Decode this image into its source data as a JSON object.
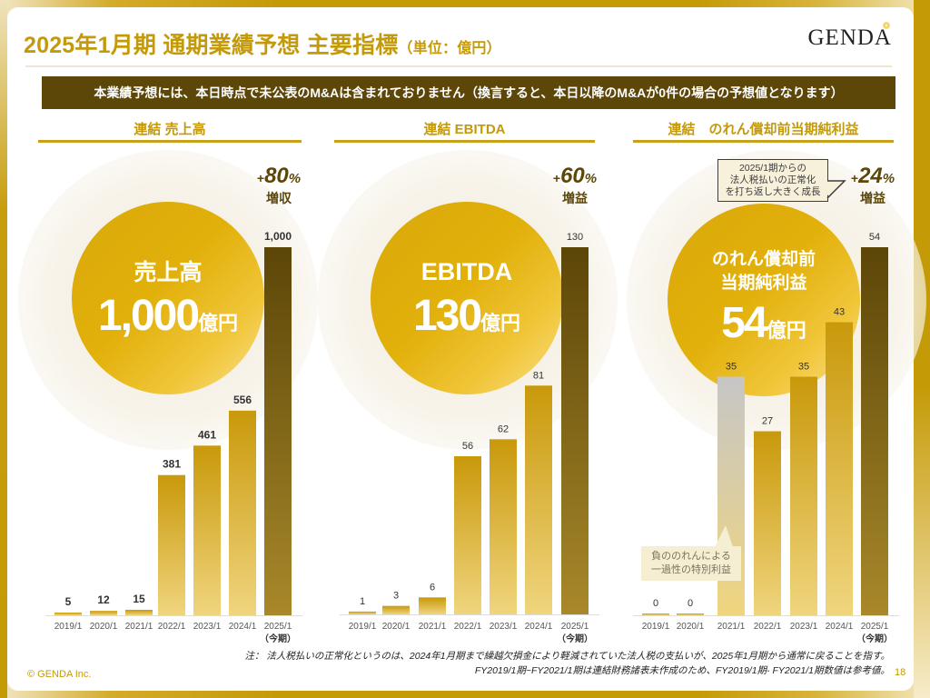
{
  "title": {
    "main": "2025年1月期 通期業績予想 主要指標",
    "unit": "（単位：億円）"
  },
  "logo": "GENDA",
  "banner": "本業績予想には、本日時点で未公表のM&Aは含まれておりません（換言すると、本日以降のM&Aが0件の場合の予想値となります）",
  "colors": {
    "gold": "#c49a0a",
    "dark_bar": "#5c4608",
    "bar_light": "#efd27a",
    "bar_mid": "#c9990b",
    "grey_bar": "#c8c8c8"
  },
  "panels": [
    {
      "section_title": "連結 売上高",
      "circle_label": "売上高",
      "circle_value": "1,000",
      "circle_unit": "億円",
      "growth_plus": "+",
      "growth_value": "80",
      "growth_pct": "%",
      "growth_word": "増収"
    },
    {
      "section_title": "連結 EBITDA",
      "circle_label": "EBITDA",
      "circle_value": "130",
      "circle_unit": "億円",
      "growth_plus": "+",
      "growth_value": "60",
      "growth_pct": "%",
      "growth_word": "増益"
    },
    {
      "section_title": "連結　のれん償却前当期純利益",
      "circle_label_line1": "のれん償却前",
      "circle_label_line2": "当期純利益",
      "circle_value": "54",
      "circle_unit": "億円",
      "growth_plus": "+",
      "growth_value": "24",
      "growth_pct": "%",
      "growth_word": "増益",
      "callout_top": [
        "2025/1期からの",
        "法人税払いの正常化",
        "を打ち返し大きく成長"
      ],
      "callout_bottom": [
        "負ののれんによる",
        "一過性の特別利益"
      ]
    }
  ],
  "chart_data": [
    {
      "type": "bar",
      "title": "連結 売上高",
      "categories": [
        "2019/1",
        "2020/1",
        "2021/1",
        "2022/1",
        "2023/1",
        "2024/1",
        "2025/1"
      ],
      "category_sublabels": [
        "",
        "",
        "",
        "",
        "",
        "",
        "（今期）"
      ],
      "values": [
        5,
        12,
        15,
        381,
        461,
        556,
        1000
      ],
      "labels": [
        "5",
        "12",
        "15",
        "381",
        "461",
        "556",
        "1,000"
      ],
      "highlight": [
        false,
        false,
        false,
        false,
        false,
        false,
        true
      ],
      "ylim": [
        0,
        1000
      ],
      "xlabel": "",
      "ylabel": "",
      "grid": false
    },
    {
      "type": "bar",
      "title": "連結 EBITDA",
      "categories": [
        "2019/1",
        "2020/1",
        "2021/1",
        "2022/1",
        "2023/1",
        "2024/1",
        "2025/1"
      ],
      "category_sublabels": [
        "",
        "",
        "",
        "",
        "",
        "",
        "（今期）"
      ],
      "values": [
        1,
        3,
        6,
        56,
        62,
        81,
        130
      ],
      "labels": [
        "1",
        "3",
        "6",
        "56",
        "62",
        "81",
        "130"
      ],
      "highlight": [
        false,
        false,
        false,
        false,
        false,
        false,
        true
      ],
      "ylim": [
        0,
        130
      ],
      "xlabel": "",
      "ylabel": "",
      "grid": false
    },
    {
      "type": "bar",
      "title": "連結　のれん償却前当期純利益",
      "categories": [
        "2019/1",
        "2020/1",
        "2021/1",
        "2022/1",
        "2023/1",
        "2024/1",
        "2025/1"
      ],
      "category_sublabels": [
        "",
        "",
        "",
        "",
        "",
        "",
        "（今期）"
      ],
      "values": [
        0,
        0,
        35,
        27,
        35,
        43,
        54
      ],
      "labels": [
        "0",
        "0",
        "35",
        "27",
        "35",
        "43",
        "54"
      ],
      "highlight": [
        false,
        false,
        false,
        false,
        false,
        false,
        true
      ],
      "grey": [
        false,
        false,
        true,
        false,
        false,
        false,
        false
      ],
      "ylim": [
        0,
        54
      ],
      "xlabel": "",
      "ylabel": "",
      "grid": false
    }
  ],
  "footer": {
    "note_line1": "注：  法人税払いの正常化というのは、2024年1月期まで繰越欠損金により軽減されていた法人税の支払いが、2025年1月期から通常に戻ることを指す。",
    "note_line2": "FY2019/1期~FY2021/1期は連結財務諸表未作成のため、FY2019/1期- FY2021/1期数値は参考値。",
    "copyright": "© GENDA Inc.",
    "page_number": "18"
  }
}
